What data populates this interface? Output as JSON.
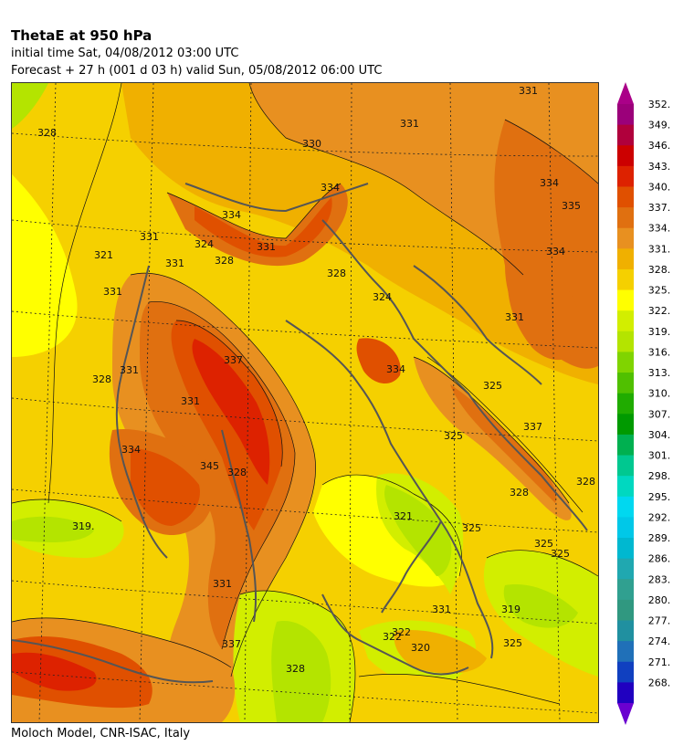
{
  "header": {
    "title": "ThetaE at 950 hPa",
    "initial_time": "initial time  Sat, 04/08/2012  03:00 UTC",
    "forecast": "Forecast  +  27 h  (001 d 03 h)  valid Sun, 05/08/2012 06:00 UTC"
  },
  "footer": {
    "credit": "Moloch Model, CNR-ISAC, Italy"
  },
  "legend": {
    "levels": [
      "352.",
      "349.",
      "346.",
      "343.",
      "340.",
      "337.",
      "334.",
      "331.",
      "328.",
      "325.",
      "322.",
      "319.",
      "316.",
      "313.",
      "310.",
      "307.",
      "304.",
      "301.",
      "298.",
      "295.",
      "292.",
      "289.",
      "286.",
      "283.",
      "280.",
      "277.",
      "274.",
      "271.",
      "268."
    ],
    "colors": [
      "#9b007a",
      "#b0003c",
      "#cc0000",
      "#dd2200",
      "#e05000",
      "#e07010",
      "#e89020",
      "#f0b000",
      "#f5d000",
      "#ffff00",
      "#d2ee00",
      "#b4e400",
      "#80d400",
      "#50c000",
      "#20ac00",
      "#009a00",
      "#00b050",
      "#00c890",
      "#00d8c0",
      "#00d8f0",
      "#00c8e8",
      "#00b8d0",
      "#20a8b0",
      "#30a090",
      "#309880",
      "#2090a0",
      "#2070b8",
      "#1040c0",
      "#2000c0"
    ],
    "top_arrow_color": "#aa0088",
    "bottom_arrow_color": "#6a00d0"
  },
  "map": {
    "contour_labels": [
      "331",
      "331",
      "328",
      "330",
      "334",
      "335",
      "334",
      "334",
      "331",
      "334",
      "324",
      "328",
      "331",
      "331",
      "331",
      "321",
      "328",
      "331",
      "334",
      "337",
      "345",
      "331",
      "324",
      "328",
      "334",
      "325",
      "325",
      "321",
      "319.",
      "328",
      "331",
      "337",
      "325",
      "328",
      "331",
      "322",
      "325",
      "319",
      "322",
      "320",
      "325",
      "331",
      "337",
      "325",
      "328",
      "328"
    ]
  }
}
